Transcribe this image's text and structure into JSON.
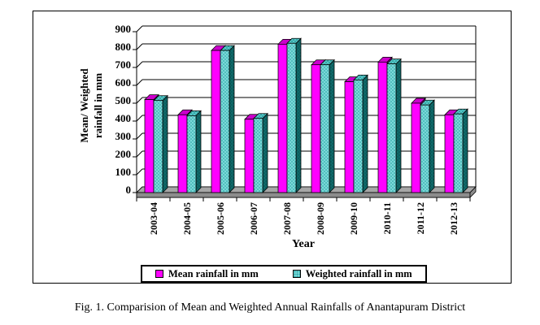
{
  "figure": {
    "caption": "Fig. 1. Comparision of Mean and Weighted Annual Rainfalls of Anantapuram District"
  },
  "chart_data": {
    "type": "bar",
    "style": "3d-clustered-column",
    "title": "",
    "xlabel": "Year",
    "ylabel": "Mean/ Weighted rainfall in mm",
    "ylabel_lines": [
      "Mean/ Weighted",
      "rainfall in mm"
    ],
    "categories": [
      "2003-04",
      "2004-05",
      "2005-06",
      "2006-07",
      "2007-08",
      "2008-09",
      "2009-10",
      "2010-11",
      "2011-12",
      "2012-13"
    ],
    "series": [
      {
        "name": "Mean rainfall in mm",
        "color": "#FF00FF",
        "values": [
          520,
          435,
          795,
          410,
          830,
          715,
          620,
          730,
          500,
          435
        ]
      },
      {
        "name": "Weighted rainfall in mm",
        "color": "#6FD4D4",
        "values": [
          515,
          430,
          795,
          415,
          835,
          715,
          630,
          720,
          490,
          440
        ]
      }
    ],
    "ylim": [
      0,
      900
    ],
    "ytick_step": 100,
    "grid": true,
    "legend_position": "bottom"
  },
  "colors": {
    "magenta_front": "#FF00FF",
    "magenta_top": "#CC00CC",
    "magenta_side": "#850085",
    "teal_front": "#7CD9D9",
    "teal_front_dot": "#1F9E9E",
    "teal_top": "#55C8C8",
    "teal_top_dot": "#157D7D",
    "teal_side": "#0F6B6B",
    "teal_side_dot": "#0A4A4A",
    "floor": "#A6A6A6",
    "floor_front": "#8C8C8C",
    "axis": "#000000"
  }
}
